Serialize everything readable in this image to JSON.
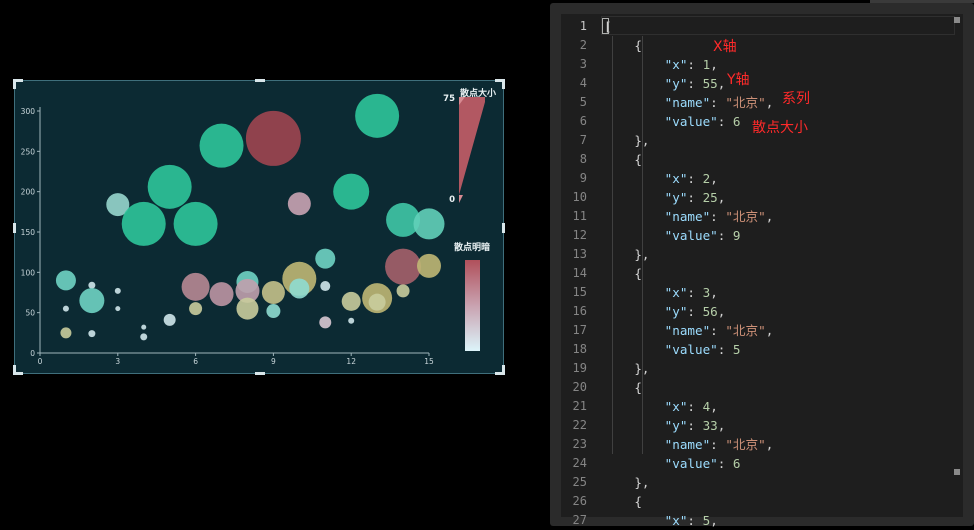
{
  "chart_data": {
    "type": "scatter",
    "x_ticks": [
      "0",
      "3",
      "6",
      "9",
      "12",
      "15"
    ],
    "y_ticks": [
      "0",
      "50",
      "100",
      "150",
      "200",
      "250",
      "300"
    ],
    "xlim": [
      0,
      15
    ],
    "ylim": [
      0,
      300
    ],
    "visual_size": {
      "title": "散点大小",
      "max_label": "75",
      "min_label": "0"
    },
    "visual_color": {
      "title": "散点明暗"
    },
    "colors": {
      "teal": "#2ec59a",
      "red": "#9e4550",
      "yellow": "#bfb774",
      "pale": "#cfe6ea"
    },
    "points": [
      {
        "x": 13,
        "y": 294,
        "size": 44,
        "color": "teal"
      },
      {
        "x": 9,
        "y": 266,
        "size": 55,
        "color": "red"
      },
      {
        "x": 7,
        "y": 257,
        "size": 44,
        "color": "teal"
      },
      {
        "x": 5,
        "y": 206,
        "size": 44,
        "color": "teal"
      },
      {
        "x": 12,
        "y": 200,
        "size": 36,
        "color": "teal"
      },
      {
        "x": 3,
        "y": 184,
        "size": 23,
        "color": "tealpale"
      },
      {
        "x": 10,
        "y": 185,
        "size": 23,
        "color": "pink"
      },
      {
        "x": 4,
        "y": 160,
        "size": 44,
        "color": "teal"
      },
      {
        "x": 6,
        "y": 160,
        "size": 44,
        "color": "teal"
      },
      {
        "x": 14,
        "y": 165,
        "size": 34,
        "color": "teal2"
      },
      {
        "x": 15,
        "y": 160,
        "size": 31,
        "color": "teal3"
      },
      {
        "x": 11,
        "y": 117,
        "size": 20,
        "color": "teal4"
      },
      {
        "x": 14,
        "y": 107,
        "size": 36,
        "color": "red2"
      },
      {
        "x": 15,
        "y": 108,
        "size": 24,
        "color": "yellow"
      },
      {
        "x": 1,
        "y": 90,
        "size": 20,
        "color": "teal4"
      },
      {
        "x": 2,
        "y": 84,
        "size": 7,
        "color": "pale"
      },
      {
        "x": 3,
        "y": 77,
        "size": 6,
        "color": "pale"
      },
      {
        "x": 10,
        "y": 92,
        "size": 34,
        "color": "yellow"
      },
      {
        "x": 8,
        "y": 88,
        "size": 22,
        "color": "teal4"
      },
      {
        "x": 6,
        "y": 82,
        "size": 28,
        "color": "mauve"
      },
      {
        "x": 7,
        "y": 73,
        "size": 24,
        "color": "mauve2"
      },
      {
        "x": 8,
        "y": 77,
        "size": 24,
        "color": "mauve3"
      },
      {
        "x": 9,
        "y": 75,
        "size": 23,
        "color": "yellow2"
      },
      {
        "x": 10,
        "y": 80,
        "size": 20,
        "color": "teal5"
      },
      {
        "x": 11,
        "y": 83,
        "size": 10,
        "color": "pale"
      },
      {
        "x": 2,
        "y": 65,
        "size": 25,
        "color": "teal4"
      },
      {
        "x": 1,
        "y": 55,
        "size": 6,
        "color": "pale"
      },
      {
        "x": 3,
        "y": 55,
        "size": 5,
        "color": "pale"
      },
      {
        "x": 6,
        "y": 55,
        "size": 13,
        "color": "yellow3"
      },
      {
        "x": 8,
        "y": 55,
        "size": 22,
        "color": "yellow3"
      },
      {
        "x": 9,
        "y": 52,
        "size": 14,
        "color": "teal5"
      },
      {
        "x": 12,
        "y": 64,
        "size": 19,
        "color": "yellow3"
      },
      {
        "x": 13,
        "y": 68,
        "size": 30,
        "color": "yellow"
      },
      {
        "x": 13,
        "y": 63,
        "size": 17,
        "color": "yellow3"
      },
      {
        "x": 14,
        "y": 77,
        "size": 13,
        "color": "yellow3"
      },
      {
        "x": 5,
        "y": 41,
        "size": 12,
        "color": "pale"
      },
      {
        "x": 11,
        "y": 38,
        "size": 12,
        "color": "pale2"
      },
      {
        "x": 12,
        "y": 40,
        "size": 6,
        "color": "pale"
      },
      {
        "x": 4,
        "y": 32,
        "size": 5,
        "color": "pale"
      },
      {
        "x": 1,
        "y": 25,
        "size": 11,
        "color": "yellow3"
      },
      {
        "x": 2,
        "y": 24,
        "size": 7,
        "color": "pale"
      },
      {
        "x": 4,
        "y": 20,
        "size": 7,
        "color": "pale"
      }
    ]
  },
  "editor": {
    "line_numbers": [
      "1",
      "2",
      "3",
      "4",
      "5",
      "6",
      "7",
      "8",
      "9",
      "10",
      "11",
      "12",
      "13",
      "14",
      "15",
      "16",
      "17",
      "18",
      "19",
      "20",
      "21",
      "22",
      "23",
      "24",
      "25",
      "26",
      "27"
    ],
    "lines": [
      [
        {
          "t": "p",
          "v": "["
        }
      ],
      [
        {
          "t": "p",
          "v": "    {"
        }
      ],
      [
        {
          "t": "p",
          "v": "        "
        },
        {
          "t": "k",
          "v": "\"x\""
        },
        {
          "t": "p",
          "v": ": "
        },
        {
          "t": "n",
          "v": "1"
        },
        {
          "t": "p",
          "v": ","
        }
      ],
      [
        {
          "t": "p",
          "v": "        "
        },
        {
          "t": "k",
          "v": "\"y\""
        },
        {
          "t": "p",
          "v": ": "
        },
        {
          "t": "n",
          "v": "55"
        },
        {
          "t": "p",
          "v": ","
        }
      ],
      [
        {
          "t": "p",
          "v": "        "
        },
        {
          "t": "k",
          "v": "\"name\""
        },
        {
          "t": "p",
          "v": ": "
        },
        {
          "t": "s",
          "v": "\"北京\""
        },
        {
          "t": "p",
          "v": ","
        }
      ],
      [
        {
          "t": "p",
          "v": "        "
        },
        {
          "t": "k",
          "v": "\"value\""
        },
        {
          "t": "p",
          "v": ": "
        },
        {
          "t": "n",
          "v": "6"
        }
      ],
      [
        {
          "t": "p",
          "v": "    },"
        }
      ],
      [
        {
          "t": "p",
          "v": "    {"
        }
      ],
      [
        {
          "t": "p",
          "v": "        "
        },
        {
          "t": "k",
          "v": "\"x\""
        },
        {
          "t": "p",
          "v": ": "
        },
        {
          "t": "n",
          "v": "2"
        },
        {
          "t": "p",
          "v": ","
        }
      ],
      [
        {
          "t": "p",
          "v": "        "
        },
        {
          "t": "k",
          "v": "\"y\""
        },
        {
          "t": "p",
          "v": ": "
        },
        {
          "t": "n",
          "v": "25"
        },
        {
          "t": "p",
          "v": ","
        }
      ],
      [
        {
          "t": "p",
          "v": "        "
        },
        {
          "t": "k",
          "v": "\"name\""
        },
        {
          "t": "p",
          "v": ": "
        },
        {
          "t": "s",
          "v": "\"北京\""
        },
        {
          "t": "p",
          "v": ","
        }
      ],
      [
        {
          "t": "p",
          "v": "        "
        },
        {
          "t": "k",
          "v": "\"value\""
        },
        {
          "t": "p",
          "v": ": "
        },
        {
          "t": "n",
          "v": "9"
        }
      ],
      [
        {
          "t": "p",
          "v": "    },"
        }
      ],
      [
        {
          "t": "p",
          "v": "    {"
        }
      ],
      [
        {
          "t": "p",
          "v": "        "
        },
        {
          "t": "k",
          "v": "\"x\""
        },
        {
          "t": "p",
          "v": ": "
        },
        {
          "t": "n",
          "v": "3"
        },
        {
          "t": "p",
          "v": ","
        }
      ],
      [
        {
          "t": "p",
          "v": "        "
        },
        {
          "t": "k",
          "v": "\"y\""
        },
        {
          "t": "p",
          "v": ": "
        },
        {
          "t": "n",
          "v": "56"
        },
        {
          "t": "p",
          "v": ","
        }
      ],
      [
        {
          "t": "p",
          "v": "        "
        },
        {
          "t": "k",
          "v": "\"name\""
        },
        {
          "t": "p",
          "v": ": "
        },
        {
          "t": "s",
          "v": "\"北京\""
        },
        {
          "t": "p",
          "v": ","
        }
      ],
      [
        {
          "t": "p",
          "v": "        "
        },
        {
          "t": "k",
          "v": "\"value\""
        },
        {
          "t": "p",
          "v": ": "
        },
        {
          "t": "n",
          "v": "5"
        }
      ],
      [
        {
          "t": "p",
          "v": "    },"
        }
      ],
      [
        {
          "t": "p",
          "v": "    {"
        }
      ],
      [
        {
          "t": "p",
          "v": "        "
        },
        {
          "t": "k",
          "v": "\"x\""
        },
        {
          "t": "p",
          "v": ": "
        },
        {
          "t": "n",
          "v": "4"
        },
        {
          "t": "p",
          "v": ","
        }
      ],
      [
        {
          "t": "p",
          "v": "        "
        },
        {
          "t": "k",
          "v": "\"y\""
        },
        {
          "t": "p",
          "v": ": "
        },
        {
          "t": "n",
          "v": "33"
        },
        {
          "t": "p",
          "v": ","
        }
      ],
      [
        {
          "t": "p",
          "v": "        "
        },
        {
          "t": "k",
          "v": "\"name\""
        },
        {
          "t": "p",
          "v": ": "
        },
        {
          "t": "s",
          "v": "\"北京\""
        },
        {
          "t": "p",
          "v": ","
        }
      ],
      [
        {
          "t": "p",
          "v": "        "
        },
        {
          "t": "k",
          "v": "\"value\""
        },
        {
          "t": "p",
          "v": ": "
        },
        {
          "t": "n",
          "v": "6"
        }
      ],
      [
        {
          "t": "p",
          "v": "    },"
        }
      ],
      [
        {
          "t": "p",
          "v": "    {"
        }
      ],
      [
        {
          "t": "p",
          "v": "        "
        },
        {
          "t": "k",
          "v": "\"x\""
        },
        {
          "t": "p",
          "v": ": "
        },
        {
          "t": "n",
          "v": "5"
        },
        {
          "t": "p",
          "v": ","
        }
      ]
    ],
    "annotations": {
      "x_axis": "X轴",
      "y_axis": "Y轴",
      "series": "系列",
      "size": "散点大小"
    }
  }
}
